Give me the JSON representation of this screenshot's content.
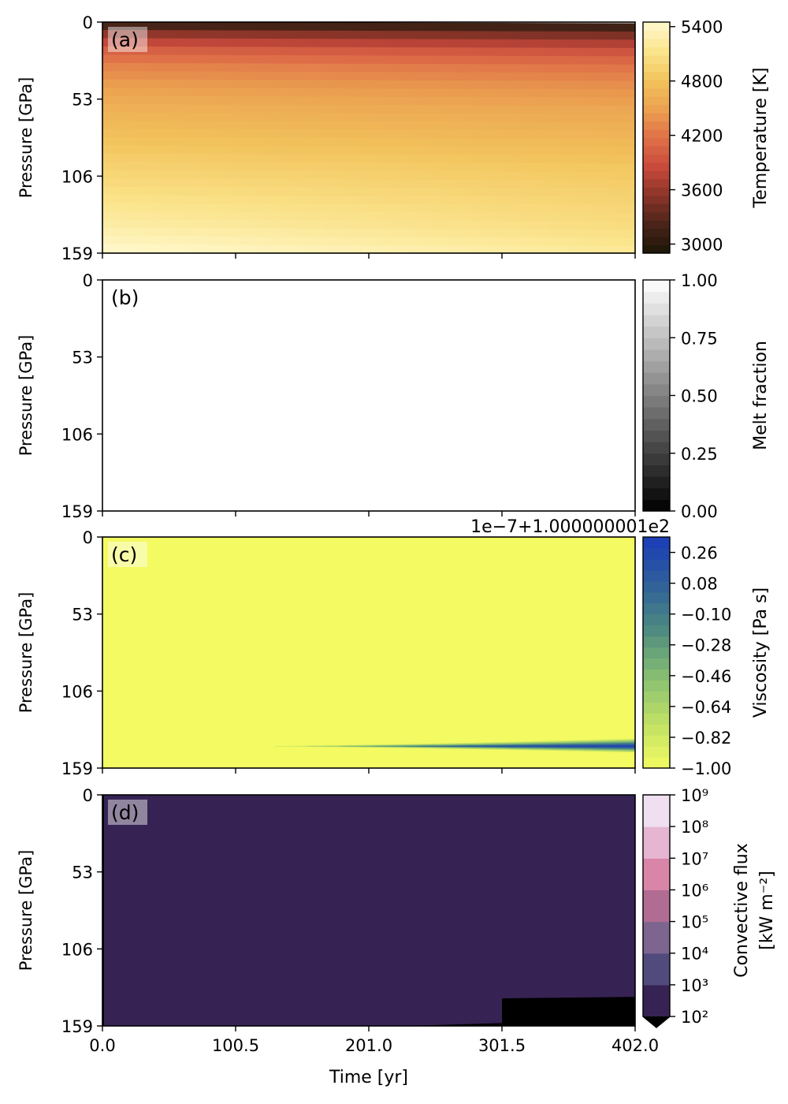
{
  "chart_data": [
    {
      "type": "heatmap",
      "panel_label": "(a)",
      "xlabel": "",
      "ylabel": "Pressure [GPa]",
      "xlim": [
        0.0,
        402.0
      ],
      "ylim": [
        159,
        0
      ],
      "yticks": [
        "0",
        "53",
        "106",
        "159"
      ],
      "colorbar": {
        "label": "Temperature [K]",
        "range": [
          2900,
          5450
        ],
        "ticks": [
          {
            "v": 3000,
            "t": "3000"
          },
          {
            "v": 3600,
            "t": "3600"
          },
          {
            "v": 4200,
            "t": "4200"
          },
          {
            "v": 4800,
            "t": "4800"
          },
          {
            "v": 5400,
            "t": "5400"
          }
        ],
        "stops": [
          "#1a1608",
          "#4a2418",
          "#8b3428",
          "#c84a3c",
          "#df7048",
          "#eba150",
          "#f2c35c",
          "#fbe58c",
          "#fff9cf"
        ]
      },
      "field": {
        "rows_at_t0": [
          {
            "p": 0,
            "v": 2950
          },
          {
            "p": 2,
            "v": 3150
          },
          {
            "p": 6,
            "v": 3450
          },
          {
            "p": 12,
            "v": 3750
          },
          {
            "p": 20,
            "v": 4050
          },
          {
            "p": 30,
            "v": 4300
          },
          {
            "p": 45,
            "v": 4500
          },
          {
            "p": 60,
            "v": 4650
          },
          {
            "p": 80,
            "v": 4800
          },
          {
            "p": 100,
            "v": 4950
          },
          {
            "p": 120,
            "v": 5100
          },
          {
            "p": 140,
            "v": 5250
          },
          {
            "p": 159,
            "v": 5450
          }
        ],
        "rows_at_tend": [
          {
            "p": 0,
            "v": 2950
          },
          {
            "p": 2,
            "v": 3100
          },
          {
            "p": 6,
            "v": 3350
          },
          {
            "p": 12,
            "v": 3650
          },
          {
            "p": 20,
            "v": 3950
          },
          {
            "p": 30,
            "v": 4200
          },
          {
            "p": 45,
            "v": 4400
          },
          {
            "p": 60,
            "v": 4550
          },
          {
            "p": 80,
            "v": 4700
          },
          {
            "p": 100,
            "v": 4850
          },
          {
            "p": 120,
            "v": 4950
          },
          {
            "p": 140,
            "v": 5050
          },
          {
            "p": 159,
            "v": 5200
          }
        ]
      }
    },
    {
      "type": "heatmap",
      "panel_label": "(b)",
      "xlabel": "",
      "ylabel": "Pressure [GPa]",
      "xlim": [
        0.0,
        402.0
      ],
      "ylim": [
        159,
        0
      ],
      "yticks": [
        "0",
        "53",
        "106",
        "159"
      ],
      "colorbar": {
        "label": "Melt fraction",
        "range": [
          0.0,
          1.0
        ],
        "ticks": [
          {
            "v": 0.0,
            "t": "0.00"
          },
          {
            "v": 0.25,
            "t": "0.25"
          },
          {
            "v": 0.5,
            "t": "0.50"
          },
          {
            "v": 0.75,
            "t": "0.75"
          },
          {
            "v": 1.0,
            "t": "1.00"
          }
        ],
        "stops": [
          "#000000",
          "#404040",
          "#808080",
          "#c0c0c0",
          "#ffffff"
        ]
      },
      "field": {
        "uniform": 1.0
      }
    },
    {
      "type": "heatmap",
      "panel_label": "(c)",
      "offset_text": "1e−7+1.000000001e2",
      "xlabel": "",
      "ylabel": "Pressure [GPa]",
      "xlim": [
        0.0,
        402.0
      ],
      "ylim": [
        159,
        0
      ],
      "yticks": [
        "0",
        "53",
        "106",
        "159"
      ],
      "colorbar": {
        "label": "Viscosity [Pa s]",
        "range": [
          -1.0,
          0.35
        ],
        "ticks": [
          {
            "v": -1.0,
            "t": "−1.00"
          },
          {
            "v": -0.82,
            "t": "−0.82"
          },
          {
            "v": -0.64,
            "t": "−0.64"
          },
          {
            "v": -0.46,
            "t": "−0.46"
          },
          {
            "v": -0.28,
            "t": "−0.28"
          },
          {
            "v": -0.1,
            "t": "−0.10"
          },
          {
            "v": 0.08,
            "t": "0.08"
          },
          {
            "v": 0.26,
            "t": "0.26"
          }
        ],
        "stops": [
          "#f3fa62",
          "#bfe066",
          "#86bd72",
          "#4e8a80",
          "#2f5f9a",
          "#1a3cb8"
        ]
      },
      "field": {
        "background": -1.0,
        "feature": {
          "t_start": 130,
          "t_end": 402.0,
          "p_center": 144,
          "peak_value": 0.26,
          "max_half_width": 9
        }
      }
    },
    {
      "type": "heatmap",
      "panel_label": "(d)",
      "xlabel": "Time [yr]",
      "ylabel": "Pressure [GPa]",
      "xlim": [
        0.0,
        402.0
      ],
      "ylim": [
        159,
        0
      ],
      "xticks": [
        "0.0",
        "100.5",
        "201.0",
        "301.5",
        "402.0"
      ],
      "yticks": [
        "0",
        "53",
        "106",
        "159"
      ],
      "colorbar": {
        "label": "Convective flux",
        "label2": "[kW m⁻²]",
        "log": true,
        "extend": "min",
        "ticks": [
          "10²",
          "10³",
          "10⁴",
          "10⁵",
          "10⁶",
          "10⁷",
          "10⁸",
          "10⁹"
        ],
        "bands": [
          "#362353",
          "#514a7d",
          "#7d6590",
          "#b06c92",
          "#d885a8",
          "#e6b5d2",
          "#efdff0"
        ]
      },
      "field": {
        "background": "#362353",
        "black_region": [
          {
            "t": 230,
            "p": 159
          },
          {
            "t": 301.5,
            "p": 157
          },
          {
            "t": 301.5,
            "p": 140
          },
          {
            "t": 402.0,
            "p": 139
          },
          {
            "t": 402.0,
            "p": 159
          }
        ],
        "left_edge_low": true
      }
    }
  ]
}
